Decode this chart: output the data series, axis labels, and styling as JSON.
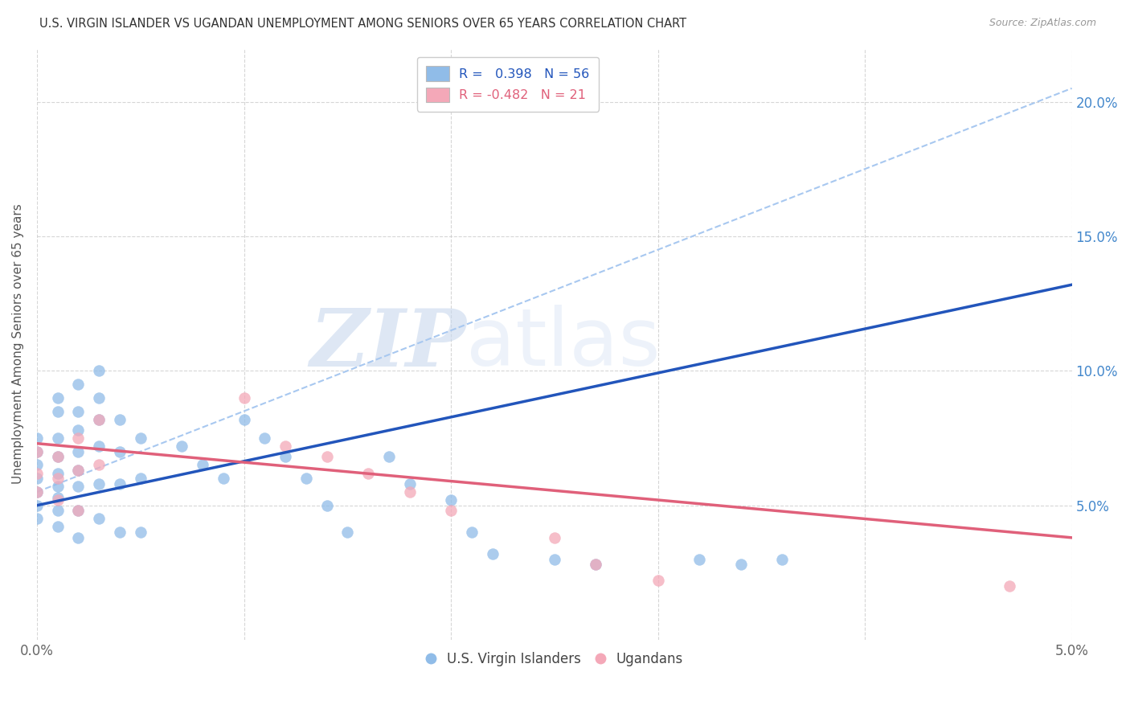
{
  "title": "U.S. VIRGIN ISLANDER VS UGANDAN UNEMPLOYMENT AMONG SENIORS OVER 65 YEARS CORRELATION CHART",
  "source": "Source: ZipAtlas.com",
  "ylabel": "Unemployment Among Seniors over 65 years",
  "xlim": [
    0.0,
    0.05
  ],
  "ylim": [
    0.0,
    0.22
  ],
  "xtick_positions": [
    0.0,
    0.01,
    0.02,
    0.03,
    0.04,
    0.05
  ],
  "xtick_labels": [
    "0.0%",
    "",
    "",
    "",
    "",
    "5.0%"
  ],
  "ytick_positions": [
    0.05,
    0.1,
    0.15,
    0.2
  ],
  "ytick_labels_right": [
    "5.0%",
    "10.0%",
    "15.0%",
    "20.0%"
  ],
  "blue_color": "#90bce8",
  "pink_color": "#f4a8b8",
  "blue_line_color": "#2255bb",
  "pink_line_color": "#e0607a",
  "dashed_line_color": "#a8c8f0",
  "legend_blue_label": "R =   0.398   N = 56",
  "legend_pink_label": "R = -0.482   N = 21",
  "watermark_zip": "ZIP",
  "watermark_atlas": "atlas",
  "legend_bottom_blue": "U.S. Virgin Islanders",
  "legend_bottom_pink": "Ugandans",
  "blue_scatter_x": [
    0.0,
    0.0,
    0.0,
    0.0,
    0.0,
    0.0,
    0.0,
    0.001,
    0.001,
    0.001,
    0.001,
    0.001,
    0.001,
    0.001,
    0.001,
    0.001,
    0.002,
    0.002,
    0.002,
    0.002,
    0.002,
    0.002,
    0.002,
    0.002,
    0.003,
    0.003,
    0.003,
    0.003,
    0.003,
    0.003,
    0.004,
    0.004,
    0.004,
    0.004,
    0.005,
    0.005,
    0.005,
    0.007,
    0.008,
    0.009,
    0.01,
    0.011,
    0.012,
    0.013,
    0.014,
    0.015,
    0.017,
    0.018,
    0.02,
    0.021,
    0.022,
    0.025,
    0.027,
    0.032,
    0.034,
    0.036
  ],
  "blue_scatter_y": [
    0.065,
    0.07,
    0.075,
    0.06,
    0.055,
    0.05,
    0.045,
    0.09,
    0.085,
    0.075,
    0.068,
    0.062,
    0.057,
    0.053,
    0.048,
    0.042,
    0.095,
    0.085,
    0.078,
    0.07,
    0.063,
    0.057,
    0.048,
    0.038,
    0.1,
    0.09,
    0.082,
    0.072,
    0.058,
    0.045,
    0.082,
    0.07,
    0.058,
    0.04,
    0.075,
    0.06,
    0.04,
    0.072,
    0.065,
    0.06,
    0.082,
    0.075,
    0.068,
    0.06,
    0.05,
    0.04,
    0.068,
    0.058,
    0.052,
    0.04,
    0.032,
    0.03,
    0.028,
    0.03,
    0.028,
    0.03
  ],
  "pink_scatter_x": [
    0.0,
    0.0,
    0.0,
    0.001,
    0.001,
    0.001,
    0.002,
    0.002,
    0.002,
    0.003,
    0.003,
    0.01,
    0.012,
    0.014,
    0.016,
    0.018,
    0.02,
    0.025,
    0.027,
    0.03,
    0.047
  ],
  "pink_scatter_y": [
    0.07,
    0.062,
    0.055,
    0.068,
    0.06,
    0.052,
    0.075,
    0.063,
    0.048,
    0.082,
    0.065,
    0.09,
    0.072,
    0.068,
    0.062,
    0.055,
    0.048,
    0.038,
    0.028,
    0.022,
    0.02
  ],
  "blue_trend_x": [
    0.0,
    0.05
  ],
  "blue_trend_y": [
    0.05,
    0.132
  ],
  "pink_trend_x": [
    0.0,
    0.05
  ],
  "pink_trend_y": [
    0.073,
    0.038
  ],
  "dashed_trend_x": [
    0.0,
    0.05
  ],
  "dashed_trend_y": [
    0.055,
    0.205
  ]
}
